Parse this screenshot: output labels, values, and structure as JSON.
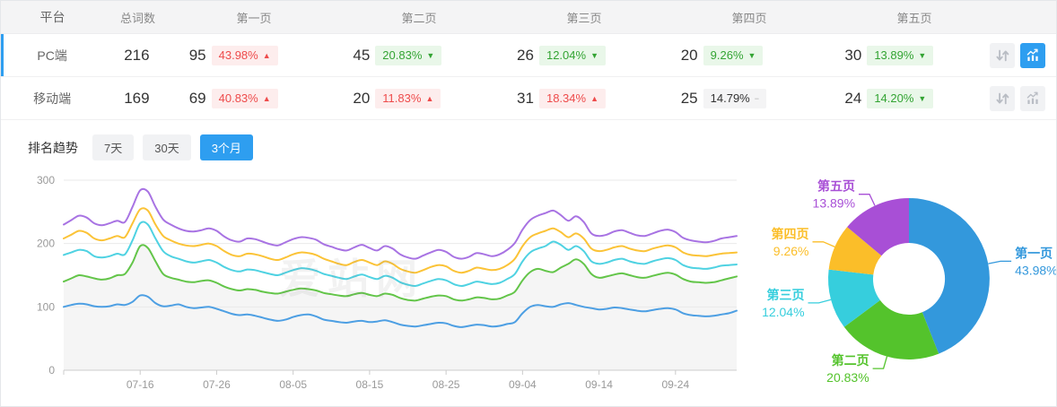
{
  "accent_color": "#2e9ef0",
  "watermark": "爱站网",
  "table": {
    "headers": [
      "平台",
      "总词数",
      "第一页",
      "第二页",
      "第三页",
      "第四页",
      "第五页"
    ],
    "rows": [
      {
        "platform": "PC端",
        "total": "216",
        "selected": true,
        "trend_active": true,
        "pages": [
          {
            "count": "95",
            "pct": "43.98%",
            "dir": "up",
            "tone": "red"
          },
          {
            "count": "45",
            "pct": "20.83%",
            "dir": "down",
            "tone": "green"
          },
          {
            "count": "26",
            "pct": "12.04%",
            "dir": "down",
            "tone": "green"
          },
          {
            "count": "20",
            "pct": "9.26%",
            "dir": "down",
            "tone": "green"
          },
          {
            "count": "30",
            "pct": "13.89%",
            "dir": "down",
            "tone": "green"
          }
        ]
      },
      {
        "platform": "移动端",
        "total": "169",
        "selected": false,
        "trend_active": false,
        "pages": [
          {
            "count": "69",
            "pct": "40.83%",
            "dir": "up",
            "tone": "red"
          },
          {
            "count": "20",
            "pct": "11.83%",
            "dir": "up",
            "tone": "red"
          },
          {
            "count": "31",
            "pct": "18.34%",
            "dir": "up",
            "tone": "red"
          },
          {
            "count": "25",
            "pct": "14.79%",
            "dir": "flat",
            "tone": "gray"
          },
          {
            "count": "24",
            "pct": "14.20%",
            "dir": "down",
            "tone": "green"
          }
        ]
      }
    ]
  },
  "trend": {
    "label": "排名趋势",
    "tabs": [
      {
        "label": "7天",
        "active": false
      },
      {
        "label": "30天",
        "active": false
      },
      {
        "label": "3个月",
        "active": true
      }
    ]
  },
  "chart_data": [
    {
      "type": "line",
      "title": "排名趋势 3个月",
      "grid": true,
      "legend": "none",
      "ylim": [
        0,
        300
      ],
      "y_ticks": [
        0,
        100,
        200,
        300
      ],
      "x_tick_labels": [
        "07-16",
        "07-26",
        "08-05",
        "08-15",
        "08-25",
        "09-04",
        "09-14",
        "09-24"
      ],
      "x_tick_indices": [
        10,
        20,
        30,
        40,
        50,
        60,
        70,
        80
      ],
      "series": [
        {
          "name": "第一页",
          "color": "#4d9fe3",
          "values": [
            100,
            103,
            105,
            104,
            101,
            100,
            101,
            104,
            103,
            108,
            118,
            116,
            106,
            101,
            102,
            104,
            100,
            98,
            99,
            100,
            97,
            93,
            89,
            87,
            88,
            86,
            83,
            80,
            78,
            80,
            84,
            87,
            88,
            85,
            80,
            78,
            76,
            75,
            77,
            78,
            76,
            77,
            79,
            76,
            72,
            70,
            69,
            71,
            73,
            75,
            74,
            70,
            68,
            70,
            72,
            71,
            69,
            70,
            73,
            76,
            90,
            100,
            103,
            101,
            100,
            104,
            106,
            103,
            100,
            98,
            96,
            97,
            99,
            98,
            96,
            94,
            93,
            95,
            97,
            98,
            96,
            90,
            87,
            86,
            85,
            86,
            88,
            90,
            94
          ]
        },
        {
          "name": "第二页",
          "color": "#63c549",
          "area": "rgba(140,140,140,0.09)",
          "values": [
            140,
            145,
            150,
            148,
            145,
            143,
            145,
            150,
            152,
            170,
            196,
            193,
            172,
            152,
            146,
            143,
            140,
            139,
            141,
            142,
            138,
            132,
            128,
            126,
            128,
            127,
            124,
            122,
            121,
            124,
            127,
            129,
            128,
            126,
            122,
            120,
            118,
            117,
            120,
            122,
            119,
            117,
            121,
            119,
            114,
            111,
            110,
            113,
            116,
            118,
            117,
            112,
            110,
            112,
            115,
            114,
            112,
            113,
            118,
            124,
            142,
            155,
            160,
            157,
            155,
            162,
            168,
            175,
            168,
            152,
            146,
            148,
            151,
            153,
            150,
            147,
            146,
            149,
            152,
            154,
            151,
            144,
            140,
            139,
            138,
            139,
            142,
            145,
            148
          ]
        },
        {
          "name": "第三页",
          "color": "#4fd2e2",
          "values": [
            182,
            186,
            190,
            188,
            180,
            178,
            180,
            184,
            183,
            205,
            232,
            230,
            208,
            188,
            180,
            176,
            172,
            170,
            172,
            174,
            170,
            163,
            158,
            156,
            159,
            158,
            155,
            152,
            150,
            154,
            158,
            161,
            160,
            157,
            152,
            149,
            146,
            144,
            148,
            151,
            147,
            144,
            149,
            146,
            139,
            135,
            133,
            137,
            141,
            144,
            142,
            136,
            133,
            136,
            140,
            138,
            136,
            138,
            144,
            152,
            172,
            186,
            192,
            196,
            203,
            198,
            190,
            196,
            188,
            172,
            168,
            170,
            174,
            176,
            172,
            169,
            168,
            172,
            175,
            177,
            174,
            166,
            162,
            161,
            160,
            162,
            165,
            166,
            167
          ]
        },
        {
          "name": "第四页",
          "color": "#fbc337",
          "values": [
            208,
            214,
            220,
            217,
            208,
            205,
            208,
            212,
            210,
            232,
            254,
            252,
            230,
            212,
            205,
            200,
            197,
            196,
            198,
            200,
            196,
            188,
            182,
            180,
            184,
            183,
            180,
            176,
            174,
            178,
            183,
            186,
            185,
            182,
            176,
            172,
            168,
            166,
            171,
            174,
            170,
            166,
            172,
            168,
            160,
            156,
            154,
            158,
            163,
            166,
            164,
            157,
            154,
            157,
            162,
            160,
            158,
            160,
            166,
            176,
            196,
            210,
            216,
            220,
            224,
            218,
            210,
            216,
            208,
            192,
            188,
            190,
            194,
            196,
            192,
            189,
            188,
            192,
            195,
            197,
            194,
            186,
            182,
            181,
            180,
            182,
            184,
            185,
            186
          ]
        },
        {
          "name": "第五页",
          "color": "#a873e3",
          "values": [
            230,
            237,
            244,
            241,
            232,
            229,
            232,
            236,
            234,
            258,
            284,
            282,
            258,
            238,
            230,
            224,
            220,
            219,
            221,
            224,
            220,
            211,
            205,
            203,
            208,
            207,
            203,
            199,
            197,
            202,
            207,
            210,
            209,
            206,
            199,
            195,
            191,
            189,
            194,
            198,
            193,
            189,
            196,
            192,
            183,
            178,
            176,
            181,
            186,
            190,
            187,
            179,
            176,
            179,
            185,
            183,
            180,
            183,
            190,
            201,
            222,
            237,
            244,
            248,
            252,
            245,
            236,
            243,
            234,
            216,
            212,
            214,
            219,
            221,
            217,
            213,
            212,
            216,
            220,
            222,
            218,
            209,
            205,
            203,
            202,
            204,
            208,
            210,
            212
          ]
        }
      ]
    },
    {
      "type": "pie",
      "donut": true,
      "unit": "%",
      "labels": [
        "第一页",
        "第二页",
        "第三页",
        "第四页",
        "第五页"
      ],
      "values": [
        43.98,
        20.83,
        12.04,
        9.26,
        13.89
      ],
      "colors": [
        "#3398dc",
        "#54c32c",
        "#36cedd",
        "#fbbe29",
        "#a84fd6"
      ]
    }
  ]
}
